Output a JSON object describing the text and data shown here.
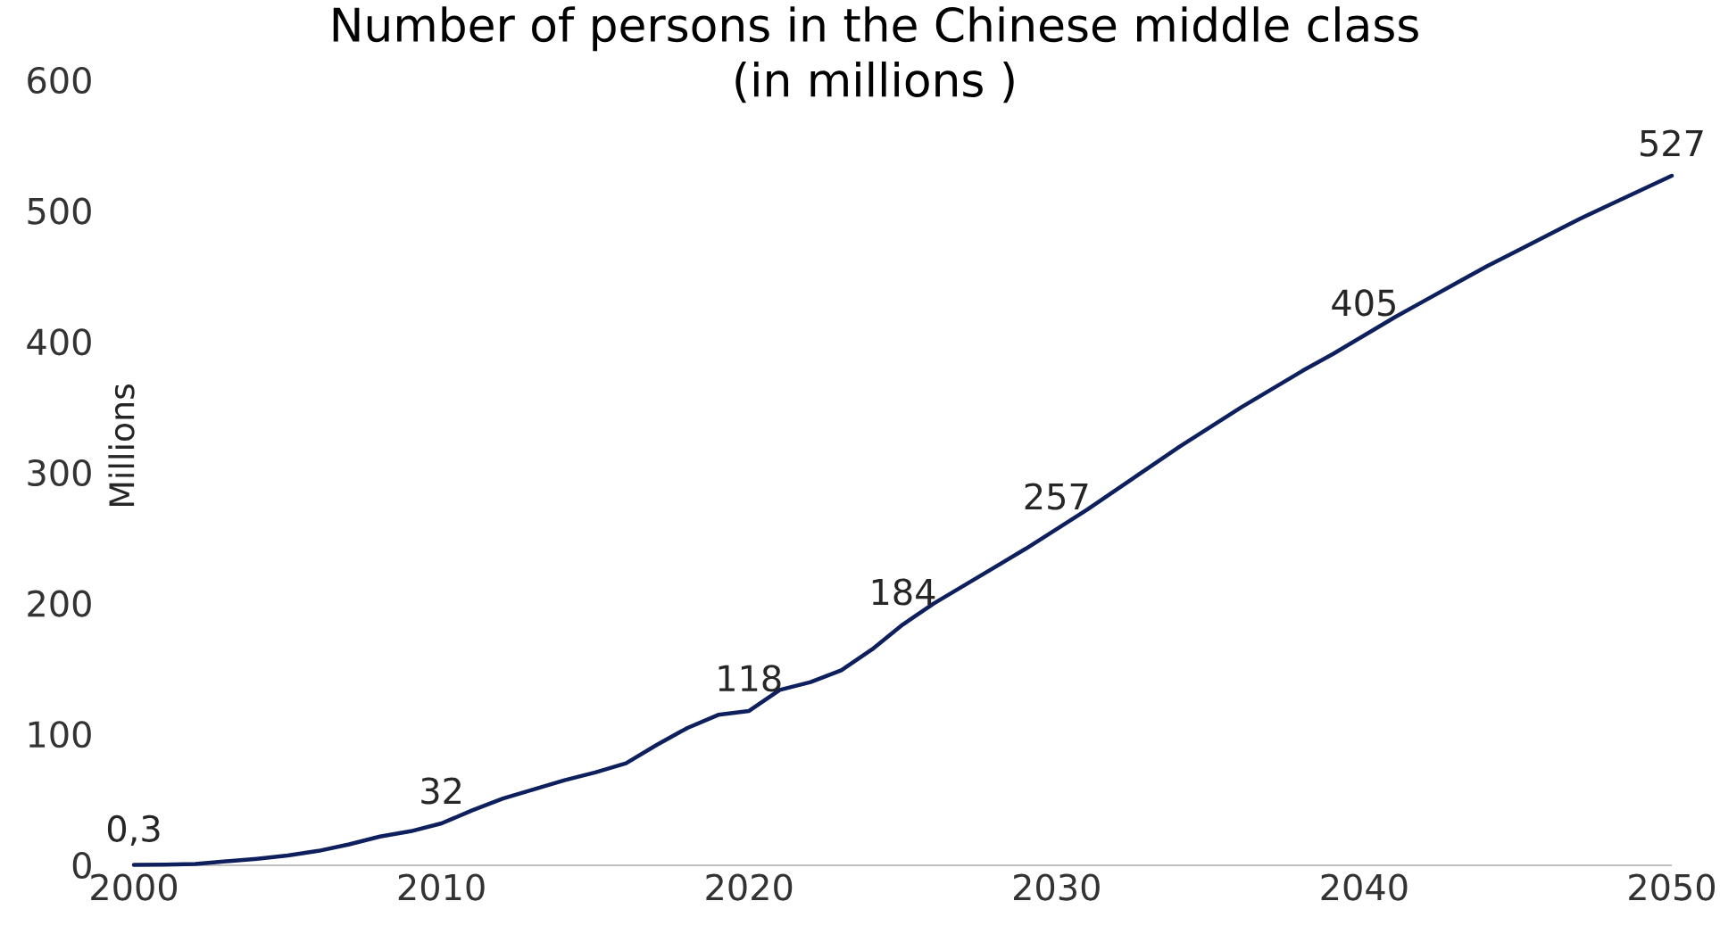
{
  "chart_data": {
    "type": "line",
    "title": "Number of persons in the Chinese middle class\n(in millions )",
    "ylabel": "Millions",
    "x": [
      2000,
      2001,
      2002,
      2003,
      2004,
      2005,
      2006,
      2007,
      2008,
      2009,
      2010,
      2011,
      2012,
      2013,
      2014,
      2015,
      2016,
      2017,
      2018,
      2019,
      2020,
      2021,
      2022,
      2023,
      2024,
      2025,
      2026,
      2027,
      2028,
      2029,
      2030,
      2031,
      2032,
      2033,
      2034,
      2035,
      2036,
      2037,
      2038,
      2039,
      2040,
      2041,
      2042,
      2043,
      2044,
      2045,
      2046,
      2047,
      2048,
      2049,
      2050
    ],
    "series": [
      {
        "color": "#0d1f5c",
        "values": [
          0.3,
          0.5,
          1,
          3,
          5,
          7.5,
          11,
          16,
          22,
          26,
          32,
          42,
          51,
          58,
          65,
          71,
          78,
          92,
          105,
          115,
          118,
          134,
          140,
          149,
          165,
          184,
          200,
          214,
          228,
          242,
          257,
          272,
          288,
          304,
          320,
          335,
          350,
          364,
          378,
          391,
          405,
          419,
          432,
          445,
          458,
          470,
          482,
          494,
          505,
          516,
          527
        ],
        "value_labels": [
          "0,3",
          null,
          null,
          null,
          null,
          null,
          null,
          null,
          null,
          null,
          "32",
          null,
          null,
          null,
          null,
          null,
          null,
          null,
          null,
          null,
          "118",
          null,
          null,
          null,
          null,
          "184",
          null,
          null,
          null,
          null,
          "257",
          null,
          null,
          null,
          null,
          null,
          null,
          null,
          null,
          null,
          "405",
          null,
          null,
          null,
          null,
          null,
          null,
          null,
          null,
          null,
          "527"
        ]
      }
    ],
    "xlim": [
      2000,
      2050
    ],
    "ylim": [
      0,
      600
    ],
    "xticks": [
      2000,
      2010,
      2020,
      2030,
      2040,
      2050
    ],
    "yticks": [
      0,
      100,
      200,
      300,
      400,
      500,
      600
    ],
    "grid": false,
    "marker": "none",
    "line_style": "solid"
  }
}
